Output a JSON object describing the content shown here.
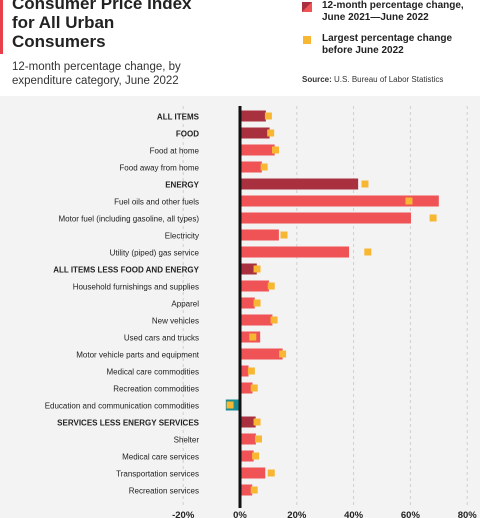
{
  "header": {
    "title": "Consumer Price Index for All Urban Consumers",
    "subtitle": "12-month percentage change, by expenditure category, June 2022"
  },
  "legend": {
    "current_label": "12-month percentage change, June 2021—June 2022",
    "largest_label": "Largest percentage change before June 2022"
  },
  "source": {
    "prefix": "Source:",
    "text": "U.S. Bureau of Labor Statistics"
  },
  "colors": {
    "major": "#a8303f",
    "detail": "#ef5356",
    "negative": "#1b8b94",
    "largest_marker": "#f7b733",
    "zero_line": "#111111",
    "grid": "#cfcfcf",
    "background": "#f3f3f3"
  },
  "chart_data": {
    "type": "bar",
    "orientation": "horizontal",
    "xlim": [
      -20,
      80
    ],
    "xticks": [
      -20,
      0,
      20,
      40,
      60,
      80
    ],
    "xtick_labels": [
      "-20%",
      "0%",
      "20%",
      "40%",
      "60%",
      "80%"
    ],
    "grid": true,
    "legend_position": "top-right",
    "series": [
      {
        "name": "12-month percentage change, June 2021—June 2022"
      },
      {
        "name": "Largest percentage change before June 2022"
      }
    ],
    "categories": [
      {
        "label": "ALL ITEMS",
        "bold": true,
        "value": 9.1,
        "largest": 10.0
      },
      {
        "label": "FOOD",
        "bold": true,
        "value": 10.4,
        "largest": 10.8
      },
      {
        "label": "Food at home",
        "bold": false,
        "value": 12.2,
        "largest": 12.5
      },
      {
        "label": "Food away from home",
        "bold": false,
        "value": 7.7,
        "largest": 8.5
      },
      {
        "label": "ENERGY",
        "bold": true,
        "value": 41.6,
        "largest": 44.0
      },
      {
        "label": "Fuel oils and other fuels",
        "bold": false,
        "value": 70.0,
        "largest": 59.5
      },
      {
        "label": "Motor fuel (including gasoline, all types)",
        "bold": false,
        "value": 60.2,
        "largest": 68.0
      },
      {
        "label": "Electricity",
        "bold": false,
        "value": 13.7,
        "largest": 15.5
      },
      {
        "label": "Utility (piped) gas service",
        "bold": false,
        "value": 38.4,
        "largest": 45.0
      },
      {
        "label": "ALL ITEMS LESS FOOD AND ENERGY",
        "bold": true,
        "value": 5.9,
        "largest": 6.0
      },
      {
        "label": "Household furnishings and supplies",
        "bold": false,
        "value": 10.2,
        "largest": 11.0
      },
      {
        "label": "Apparel",
        "bold": false,
        "value": 5.2,
        "largest": 6.0
      },
      {
        "label": "New vehicles",
        "bold": false,
        "value": 11.4,
        "largest": 12.0
      },
      {
        "label": "Used cars and trucks",
        "bold": false,
        "value": 7.1,
        "largest": 4.5
      },
      {
        "label": "Motor vehicle parts and equipment",
        "bold": false,
        "value": 15.0,
        "largest": 15.0
      },
      {
        "label": "Medical care commodities",
        "bold": false,
        "value": 3.0,
        "largest": 4.0
      },
      {
        "label": "Recreation commodities",
        "bold": false,
        "value": 4.4,
        "largest": 5.0
      },
      {
        "label": "Education and communication commodities",
        "bold": false,
        "value": -5.0,
        "largest": -3.5
      },
      {
        "label": "SERVICES LESS ENERGY SERVICES",
        "bold": true,
        "value": 5.5,
        "largest": 6.0
      },
      {
        "label": "Shelter",
        "bold": false,
        "value": 5.6,
        "largest": 6.5
      },
      {
        "label": "Medical care services",
        "bold": false,
        "value": 4.8,
        "largest": 5.5
      },
      {
        "label": "Transportation services",
        "bold": false,
        "value": 8.9,
        "largest": 11.0
      },
      {
        "label": "Recreation services",
        "bold": false,
        "value": 4.3,
        "largest": 5.0
      }
    ]
  }
}
